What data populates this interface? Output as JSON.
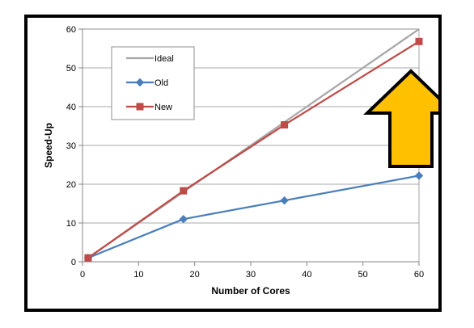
{
  "chart_data": {
    "type": "line",
    "xlabel": "Number of Cores",
    "ylabel": "Speed-Up",
    "xlim": [
      0,
      60
    ],
    "ylim": [
      0,
      60
    ],
    "xticks": [
      0,
      10,
      20,
      30,
      40,
      50,
      60
    ],
    "yticks": [
      0,
      10,
      20,
      30,
      40,
      50,
      60
    ],
    "grid": "horizontal",
    "legend_position": "top-left",
    "series": [
      {
        "name": "Ideal",
        "color": "#a6a6a6",
        "marker": "none",
        "x": [
          1,
          60
        ],
        "y": [
          1,
          60
        ]
      },
      {
        "name": "Old",
        "color": "#4a7ebb",
        "marker": "diamond",
        "x": [
          1,
          18,
          36,
          60
        ],
        "y": [
          1,
          11,
          15.8,
          22.2
        ]
      },
      {
        "name": "New",
        "color": "#be4b48",
        "marker": "square",
        "x": [
          1,
          18,
          36,
          60
        ],
        "y": [
          1,
          18.3,
          35.3,
          56.8
        ]
      }
    ],
    "annotation": {
      "type": "arrow-up",
      "fill": "#ffc000",
      "stroke": "#000000"
    }
  }
}
